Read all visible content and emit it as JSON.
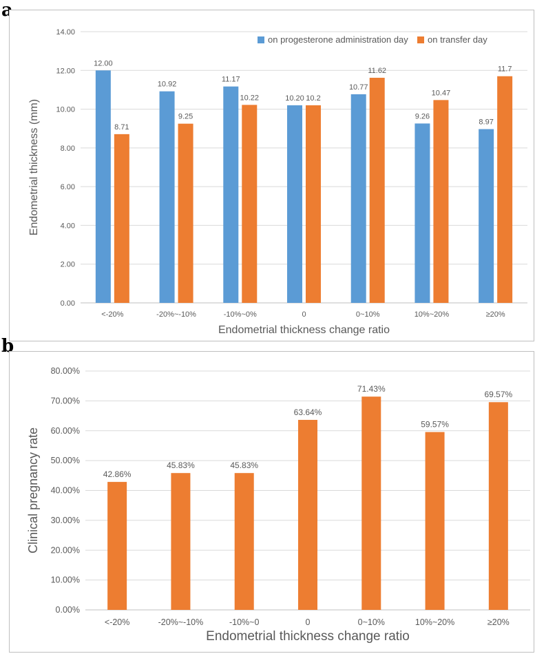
{
  "panels": {
    "a": "a",
    "b": "b"
  },
  "colors": {
    "blue": "#5b9bd5",
    "orange": "#ed7d31",
    "grid": "#d9d9d9",
    "text": "#595959",
    "axis": "#404040"
  },
  "chart_data": [
    {
      "type": "bar",
      "categories": [
        "<-20%",
        "-20%~-10%",
        "-10%~0%",
        "0",
        "0~10%",
        "10%~20%",
        "≥20%"
      ],
      "series": [
        {
          "name": "on progesterone administration day",
          "values": [
            12.0,
            10.92,
            11.17,
            10.2,
            10.77,
            9.26,
            8.97
          ],
          "labels": [
            "12.00",
            "10.92",
            "11.17",
            "10.20",
            "10.77",
            "9.26",
            "8.97"
          ]
        },
        {
          "name": "on transfer day",
          "values": [
            8.71,
            9.25,
            10.22,
            10.2,
            11.62,
            10.47,
            11.7
          ],
          "labels": [
            "8.71",
            "9.25",
            "10.22",
            "10.2",
            "11.62",
            "10.47",
            "11.7"
          ]
        }
      ],
      "xlabel": "Endometrial thickness change ratio",
      "ylabel": "Endometrial thickness (mm)",
      "ylim": [
        0,
        14
      ],
      "yticks": [
        "0.00",
        "2.00",
        "4.00",
        "6.00",
        "8.00",
        "10.00",
        "12.00",
        "14.00"
      ],
      "grid": true,
      "legend": "top-right"
    },
    {
      "type": "bar",
      "categories": [
        "<-20%",
        "-20%~-10%",
        "-10%~0",
        "0",
        "0~10%",
        "10%~20%",
        "≥20%"
      ],
      "series": [
        {
          "values": [
            42.86,
            45.83,
            45.83,
            63.64,
            71.43,
            59.57,
            69.57
          ],
          "labels": [
            "42.86%",
            "45.83%",
            "45.83%",
            "63.64%",
            "71.43%",
            "59.57%",
            "69.57%"
          ]
        }
      ],
      "xlabel": "Endometrial thickness change ratio",
      "ylabel": "Clinical pregnancy rate",
      "ylim": [
        0,
        80
      ],
      "yticks": [
        "0.00%",
        "10.00%",
        "20.00%",
        "30.00%",
        "40.00%",
        "50.00%",
        "60.00%",
        "70.00%",
        "80.00%"
      ],
      "grid": true
    }
  ]
}
